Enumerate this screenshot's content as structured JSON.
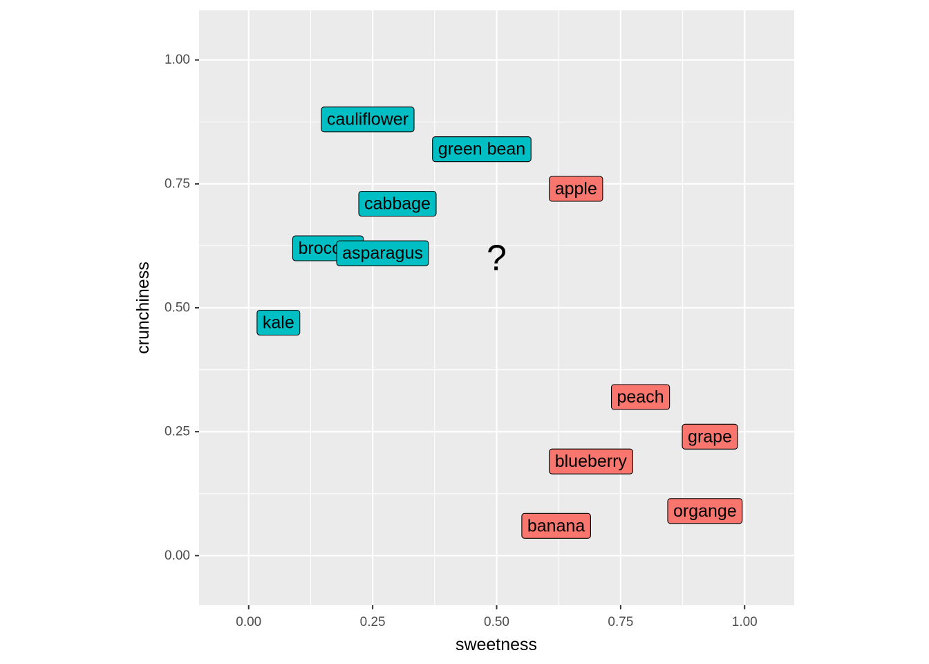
{
  "chart_data": {
    "type": "scatter",
    "xlabel": "sweetness",
    "ylabel": "crunchiness",
    "xlim": [
      -0.1,
      1.1
    ],
    "ylim": [
      -0.1,
      1.1
    ],
    "x_ticks": [
      "0.00",
      "0.25",
      "0.50",
      "0.75",
      "1.00"
    ],
    "y_ticks": [
      "0.00",
      "0.25",
      "0.50",
      "0.75",
      "1.00"
    ],
    "grid": true,
    "legend": "none",
    "colors": {
      "fruit": "#F8766D",
      "vegetable": "#00BFC4",
      "panel": "#EBEBEB",
      "grid": "#FFFFFF"
    },
    "points": [
      {
        "label": "cauliflower",
        "x": 0.24,
        "y": 0.88,
        "group": "vegetable"
      },
      {
        "label": "green bean",
        "x": 0.47,
        "y": 0.82,
        "group": "vegetable"
      },
      {
        "label": "cabbage",
        "x": 0.3,
        "y": 0.71,
        "group": "vegetable"
      },
      {
        "label": "broccoli",
        "x": 0.16,
        "y": 0.62,
        "group": "vegetable"
      },
      {
        "label": "asparagus",
        "x": 0.27,
        "y": 0.61,
        "group": "vegetable"
      },
      {
        "label": "kale",
        "x": 0.06,
        "y": 0.47,
        "group": "vegetable"
      },
      {
        "label": "apple",
        "x": 0.66,
        "y": 0.74,
        "group": "fruit"
      },
      {
        "label": "peach",
        "x": 0.79,
        "y": 0.32,
        "group": "fruit"
      },
      {
        "label": "grape",
        "x": 0.93,
        "y": 0.24,
        "group": "fruit"
      },
      {
        "label": "blueberry",
        "x": 0.69,
        "y": 0.19,
        "group": "fruit"
      },
      {
        "label": "organge",
        "x": 0.92,
        "y": 0.09,
        "group": "fruit"
      },
      {
        "label": "banana",
        "x": 0.62,
        "y": 0.06,
        "group": "fruit"
      }
    ],
    "unknown": {
      "label": "?",
      "x": 0.5,
      "y": 0.6
    }
  }
}
